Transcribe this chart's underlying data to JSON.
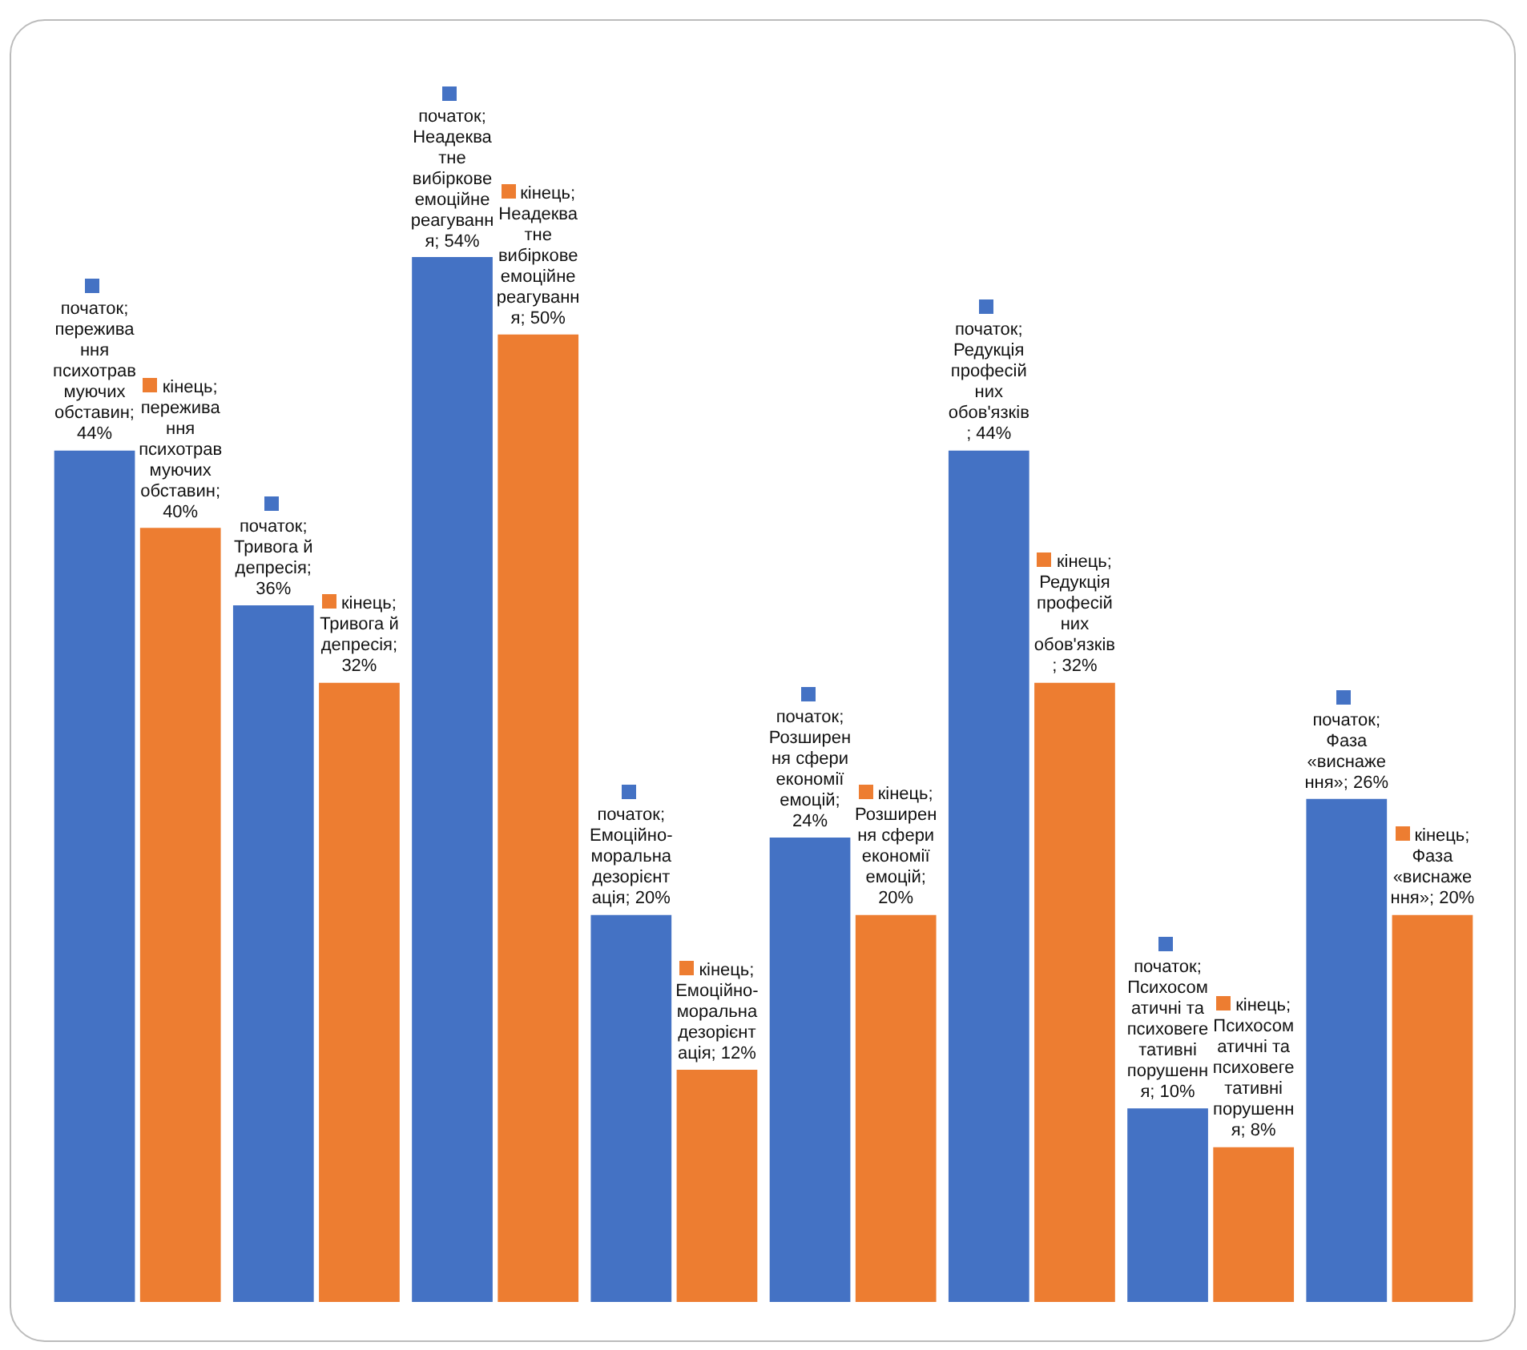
{
  "chart_data": {
    "type": "bar",
    "categories": [
      null,
      null,
      null,
      null,
      null,
      null,
      null,
      null
    ],
    "series": [
      {
        "color": "#4472c4",
        "values": [
          44,
          36,
          54,
          20,
          24,
          44,
          10,
          26
        ],
        "value_labels": [
          "початок; переживання психотравмуючих обставин; 44%",
          "початок; Тривога й депресія; 36%",
          "початок; Неадекватне вибіркове емоційне реагування; 54%",
          "початок; Емоційно-моральна дезорієнтація; 20%",
          "початок; Розширення сфери економії емоцій; 24%",
          "початок; Редукція професійних обов'язків; 44%",
          "початок; Психосоматичні та психовегетативні порушення; 10%",
          "початок; Фаза «виснаження»; 26%"
        ]
      },
      {
        "color": "#ed7d31",
        "values": [
          40,
          32,
          50,
          12,
          20,
          32,
          8,
          20
        ],
        "value_labels": [
          "кінець; переживання психотравмуючих обставин; 40%",
          "кінець; Тривога й депресія; 32%",
          "кінець; Неадекватне вибіркове емоційне реагування; 50%",
          "кінець; Емоційно-моральна дезорієнтація; 12%",
          "кінець; Розширення сфери економії емоцій; 20%",
          "кінець; Редукція професійних обов'язків; 32%",
          "кінець; Психосоматичні та психовегетативні порушення; 8%",
          "кінець; Фаза «виснаження»; 20%"
        ]
      }
    ],
    "tick_labels": false,
    "grid": false,
    "legend": false
  }
}
